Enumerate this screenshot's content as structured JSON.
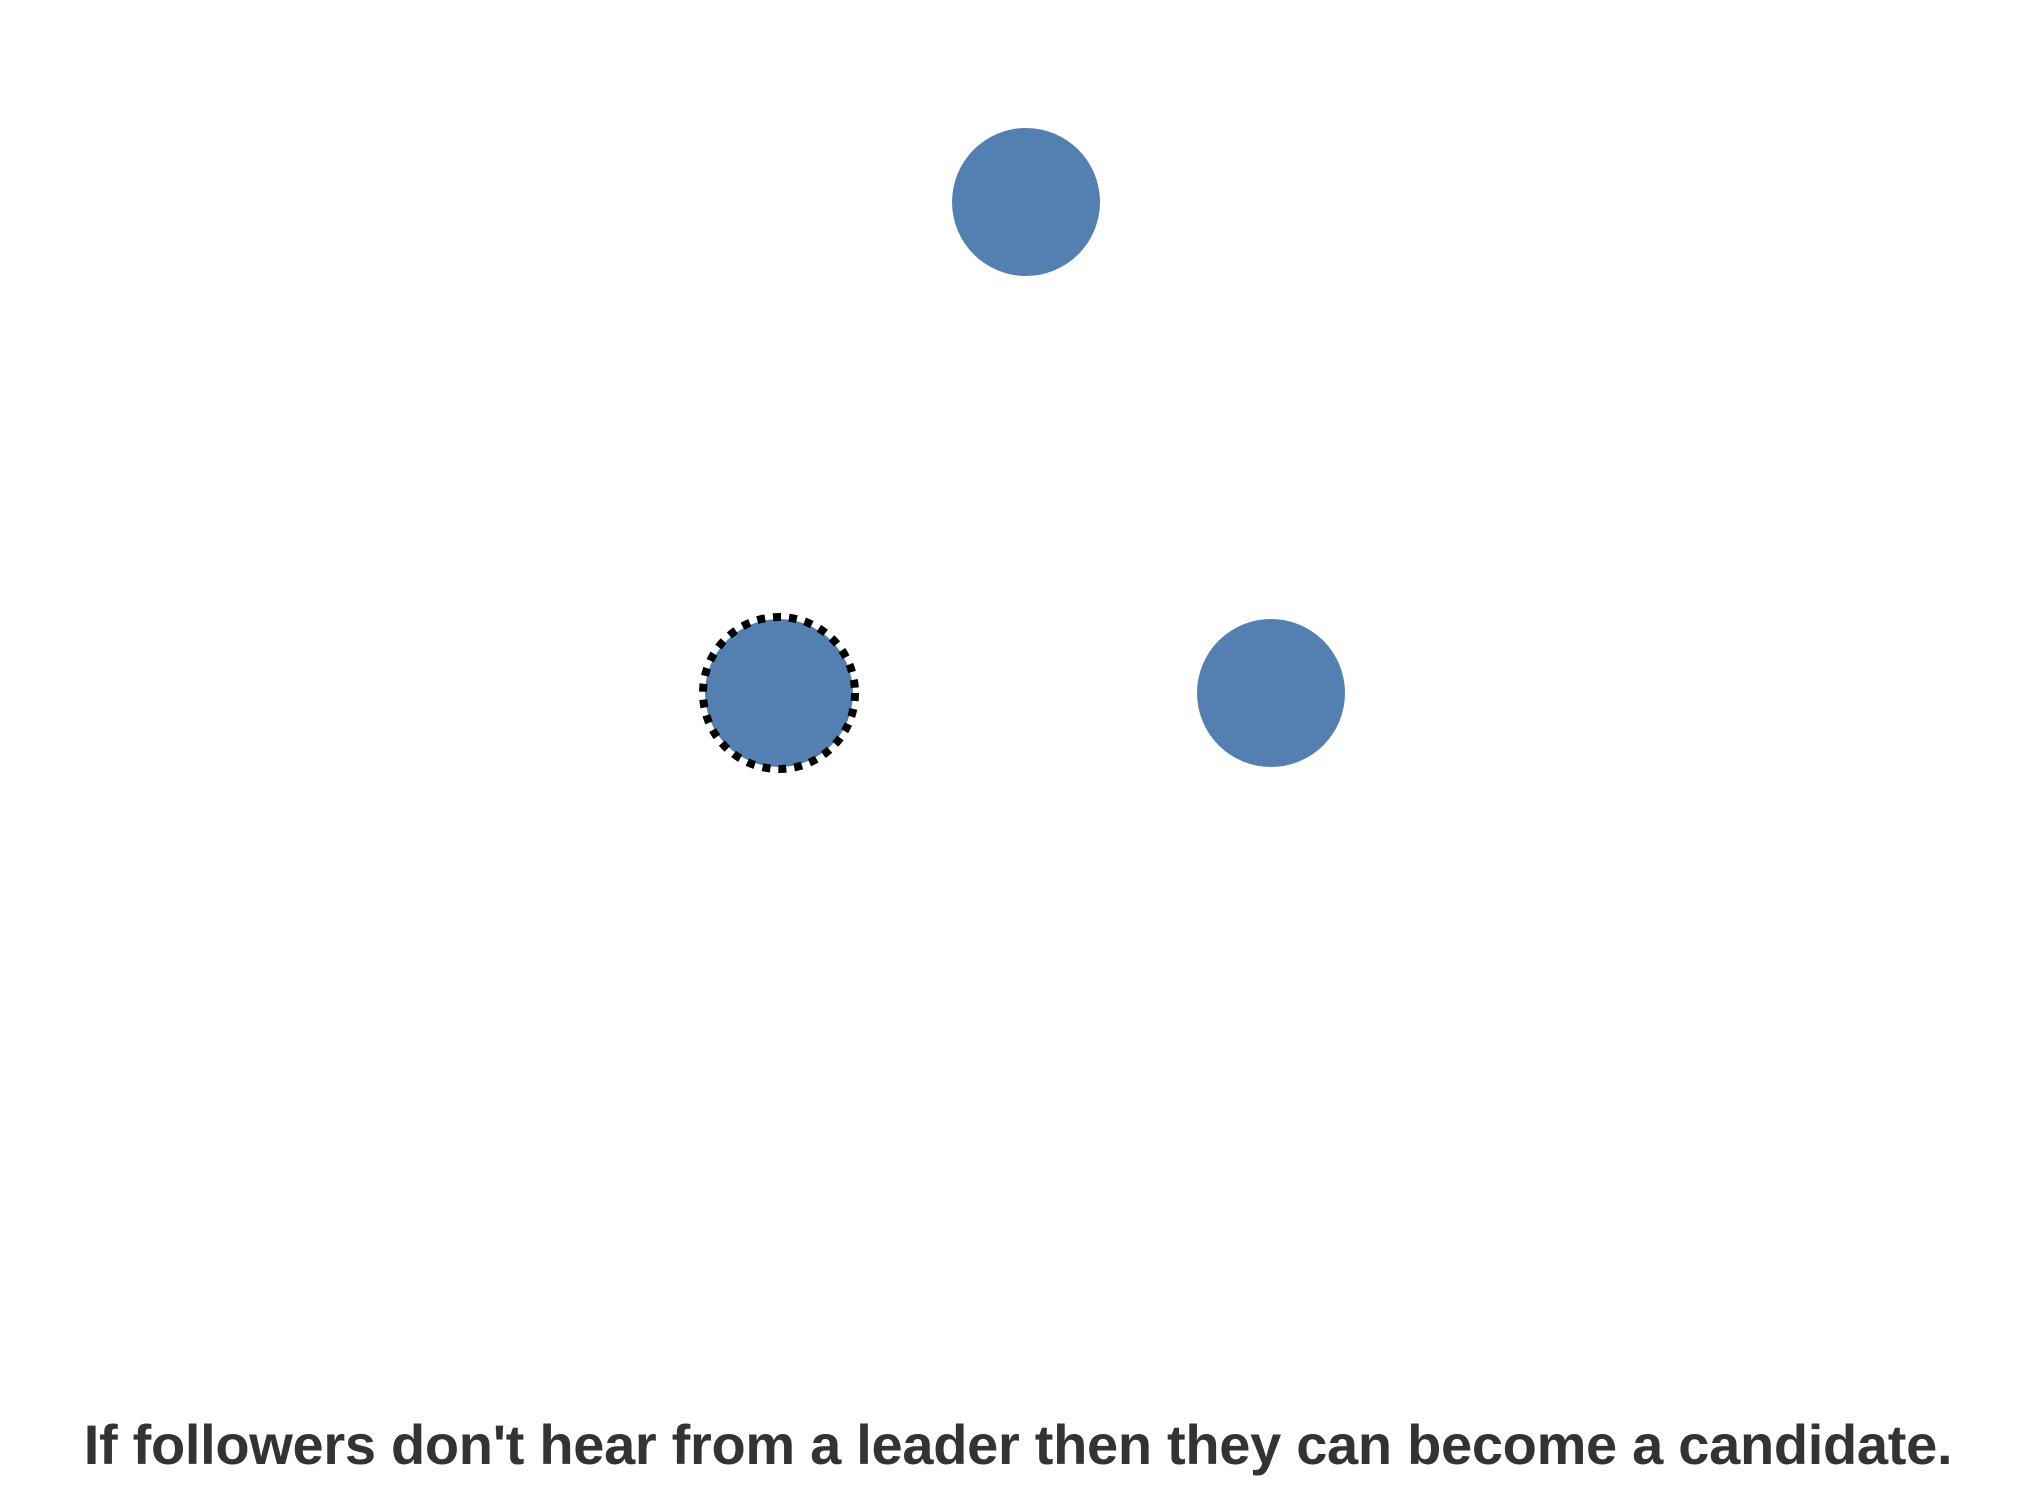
{
  "diagram": {
    "node_color": "#5380B0",
    "timeout_ring_color": "#000000",
    "nodes": [
      {
        "name": "node-top",
        "timeout_active": false
      },
      {
        "name": "node-left",
        "timeout_active": true
      },
      {
        "name": "node-right",
        "timeout_active": false
      }
    ]
  },
  "caption": {
    "text": "If followers don't hear from a leader then they can become a candidate."
  }
}
